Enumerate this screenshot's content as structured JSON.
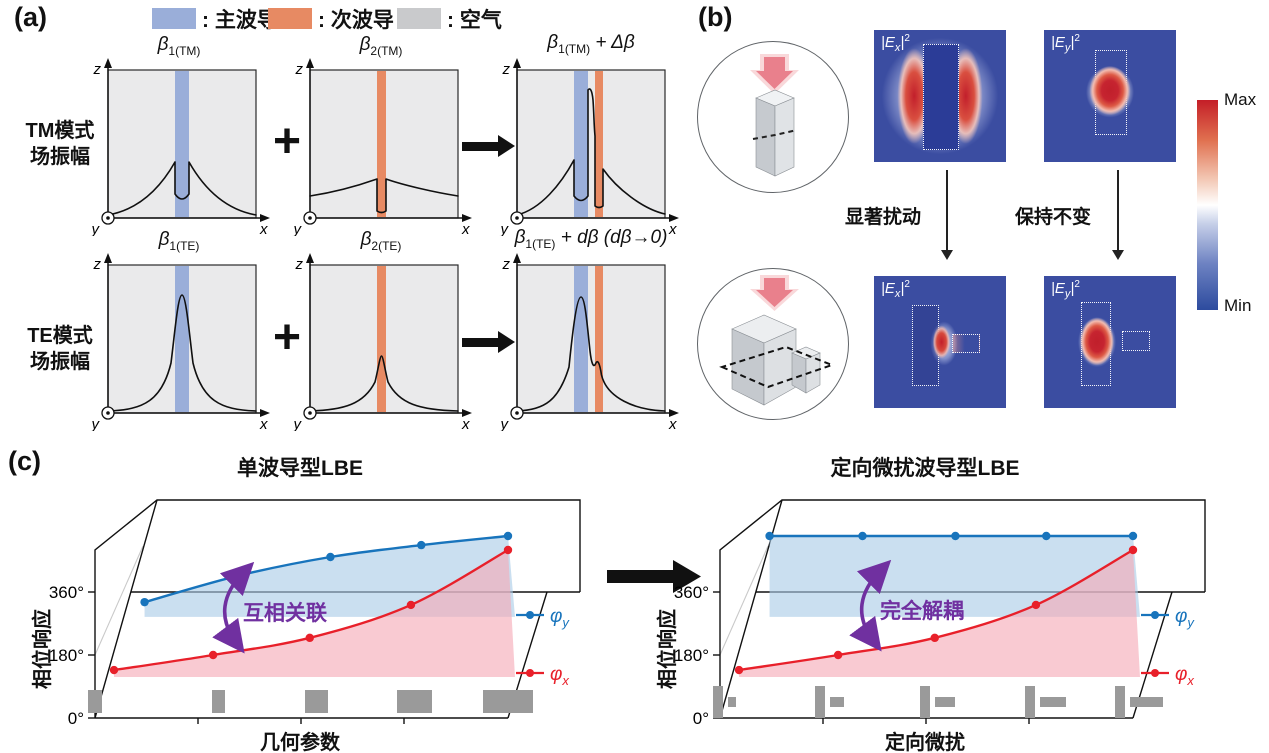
{
  "panel_a": {
    "label": "(a)",
    "legend": [
      {
        "label": ": 主波导",
        "color": "#9aaed9"
      },
      {
        "label": ": 次波导",
        "color": "#e78a63"
      },
      {
        "label": ": 空气",
        "color": "#c9cacc"
      }
    ],
    "rows": [
      {
        "line1": "TM模式",
        "line2": "场振幅"
      },
      {
        "line1": "TE模式",
        "line2": "场振幅"
      }
    ],
    "titles": {
      "tm1": {
        "beta": "β",
        "sub": "1(TM)",
        "rest": ""
      },
      "tm2": {
        "beta": "β",
        "sub": "2(TM)",
        "rest": ""
      },
      "tm3": {
        "beta": "β",
        "sub": "1(TM)",
        "rest": " + Δβ"
      },
      "te1": {
        "beta": "β",
        "sub": "1(TE)",
        "rest": ""
      },
      "te2": {
        "beta": "β",
        "sub": "2(TE)",
        "rest": ""
      },
      "te3": {
        "beta": "β",
        "sub": "1(TE)",
        "rest": " + dβ (dβ→0)"
      }
    },
    "axis": {
      "x": "x",
      "y": "y",
      "z": "z"
    },
    "plus": "+"
  },
  "panel_b": {
    "label": "(b)",
    "field_label": {
      "pre": "|E",
      "sub_x": "x",
      "sub_y": "y",
      "mid": "|",
      "sup": "2"
    },
    "annotations": {
      "perturb": "显著扰动",
      "unchanged": "保持不变"
    },
    "colorbar": {
      "max": "Max",
      "min": "Min"
    }
  },
  "panel_c": {
    "label": "(c)",
    "legend": {
      "y": {
        "sym": "φ",
        "sub": "y"
      },
      "x": {
        "sym": "φ",
        "sub": "x"
      }
    }
  },
  "colors": {
    "main_waveguide": "#9aaed9",
    "secondary_waveguide": "#e78a63",
    "air": "#c9cacc",
    "phi_y": "#1874bc",
    "phi_x": "#e8202a",
    "annotation_purple": "#7030a0",
    "field_max": "#c41e27",
    "field_min": "#2d4b9e"
  },
  "chart_data": [
    {
      "type": "line",
      "title": "单波导型LBE",
      "xlabel": "几何参数",
      "ylabel": "相位响应",
      "yticks": [
        "0°",
        "180°",
        "360°"
      ],
      "ylim": [
        0,
        540
      ],
      "grid": false,
      "legend_position": "right",
      "annotation": "互相关联",
      "series": [
        {
          "name": "φy",
          "color": "#1874bc",
          "fill": "#a9cbe6",
          "x_frac": [
            0.12,
            0.345,
            0.57,
            0.79,
            1.0
          ],
          "values_deg": [
            331,
            406,
            460,
            494,
            520
          ],
          "baseline_deg": 289
        },
        {
          "name": "φx",
          "color": "#e8202a",
          "fill": "#f5a9b7",
          "x_frac": [
            0.046,
            0.286,
            0.52,
            0.765,
            1.0
          ],
          "values_deg": [
            137,
            180,
            229,
            323,
            480
          ],
          "baseline_deg": 117
        }
      ]
    },
    {
      "type": "line",
      "title": "定向微扰波导型LBE",
      "xlabel": "定向微扰",
      "ylabel": "相位响应",
      "yticks": [
        "0°",
        "180°",
        "360°"
      ],
      "ylim": [
        0,
        540
      ],
      "grid": false,
      "legend_position": "right",
      "annotation": "完全解耦",
      "series": [
        {
          "name": "φy",
          "color": "#1874bc",
          "fill": "#a9cbe6",
          "x_frac": [
            0.12,
            0.345,
            0.57,
            0.79,
            1.0
          ],
          "values_deg": [
            520,
            520,
            520,
            520,
            520
          ],
          "baseline_deg": 289
        },
        {
          "name": "φx",
          "color": "#e8202a",
          "fill": "#f5a9b7",
          "x_frac": [
            0.046,
            0.286,
            0.52,
            0.765,
            1.0
          ],
          "values_deg": [
            137,
            180,
            229,
            323,
            480
          ],
          "baseline_deg": 117
        }
      ]
    }
  ]
}
